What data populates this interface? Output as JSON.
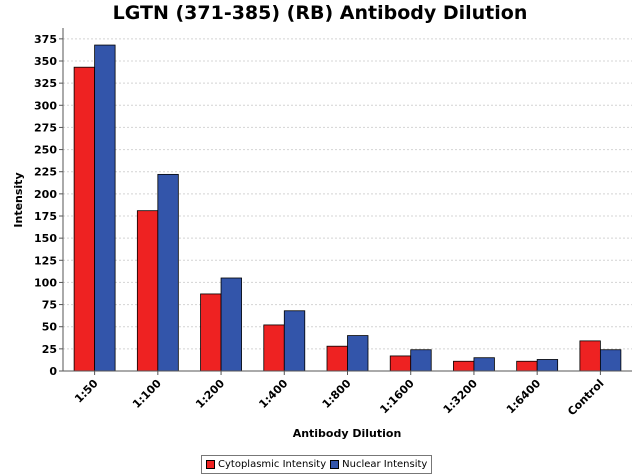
{
  "chart_data": {
    "type": "bar",
    "title": "LGTN (371-385) (RB) Antibody Dilution",
    "xlabel": "Antibody Dilution",
    "ylabel": "Intensity",
    "categories": [
      "1:50",
      "1:100",
      "1:200",
      "1:400",
      "1:800",
      "1:1600",
      "1:3200",
      "1:6400",
      "Control"
    ],
    "series": [
      {
        "name": "Cytoplasmic Intensity",
        "color": "#ee2222",
        "values": [
          343,
          181,
          87,
          52,
          28,
          17,
          11,
          11,
          34
        ]
      },
      {
        "name": "Nuclear Intensity",
        "color": "#3355aa",
        "values": [
          368,
          222,
          105,
          68,
          40,
          24,
          15,
          13,
          24
        ]
      }
    ],
    "ylim": [
      0,
      385
    ],
    "yticks": [
      0,
      25,
      50,
      75,
      100,
      125,
      150,
      175,
      200,
      225,
      250,
      275,
      300,
      325,
      350,
      375
    ],
    "grid": true,
    "legend_position": "bottom"
  }
}
